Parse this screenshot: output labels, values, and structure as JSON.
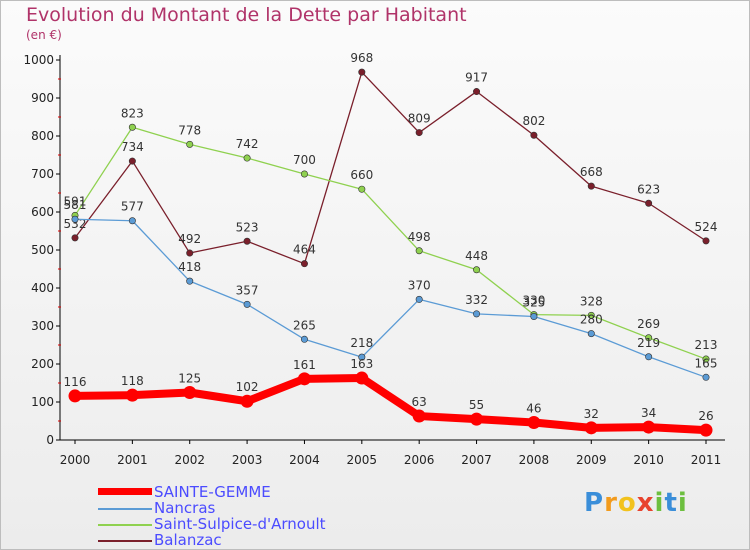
{
  "header": {
    "title": "Evolution du Montant de la Dette par Habitant",
    "subtitle": "(en €)"
  },
  "chart_data": {
    "type": "line",
    "title": "Evolution du Montant de la Dette par Habitant",
    "subtitle": "(en €)",
    "categories": [
      "2000",
      "2001",
      "2002",
      "2003",
      "2004",
      "2005",
      "2006",
      "2007",
      "2008",
      "2009",
      "2010",
      "2011"
    ],
    "ylim": [
      0,
      1000
    ],
    "yticks": [
      0,
      100,
      200,
      300,
      400,
      500,
      600,
      700,
      800,
      900,
      1000
    ],
    "grid": false,
    "legend_position": "bottom-left",
    "series": [
      {
        "name": "SAINTE-GEMME",
        "color": "#ff0000",
        "values": [
          116,
          118,
          125,
          102,
          161,
          163,
          63,
          55,
          46,
          32,
          34,
          26
        ]
      },
      {
        "name": "Nancras",
        "color": "#5b9bd5",
        "values": [
          581,
          577,
          418,
          357,
          265,
          218,
          370,
          332,
          325,
          280,
          219,
          165
        ]
      },
      {
        "name": "Saint-Sulpice-d'Arnoult",
        "color": "#8fd14f",
        "values": [
          591,
          823,
          778,
          742,
          700,
          660,
          498,
          448,
          330,
          328,
          269,
          213
        ]
      },
      {
        "name": "Balanzac",
        "color": "#7a1f2b",
        "values": [
          532,
          734,
          492,
          523,
          464,
          968,
          809,
          917,
          802,
          668,
          623,
          524
        ]
      }
    ]
  },
  "legend": [
    {
      "label": "SAINTE-GEMME",
      "color": "#ff0000"
    },
    {
      "label": "Nancras",
      "color": "#5b9bd5"
    },
    {
      "label": "Saint-Sulpice-d'Arnoult",
      "color": "#8fd14f"
    },
    {
      "label": "Balanzac",
      "color": "#7a1f2b"
    }
  ],
  "logo": {
    "letters": [
      "P",
      "r",
      "o",
      "x",
      "i",
      "t",
      "i"
    ],
    "colors": [
      "#3a8ed9",
      "#f29b1d",
      "#f2c21d",
      "#e8432e",
      "#6dbf3f",
      "#3a8ed9",
      "#6dbf3f"
    ]
  }
}
